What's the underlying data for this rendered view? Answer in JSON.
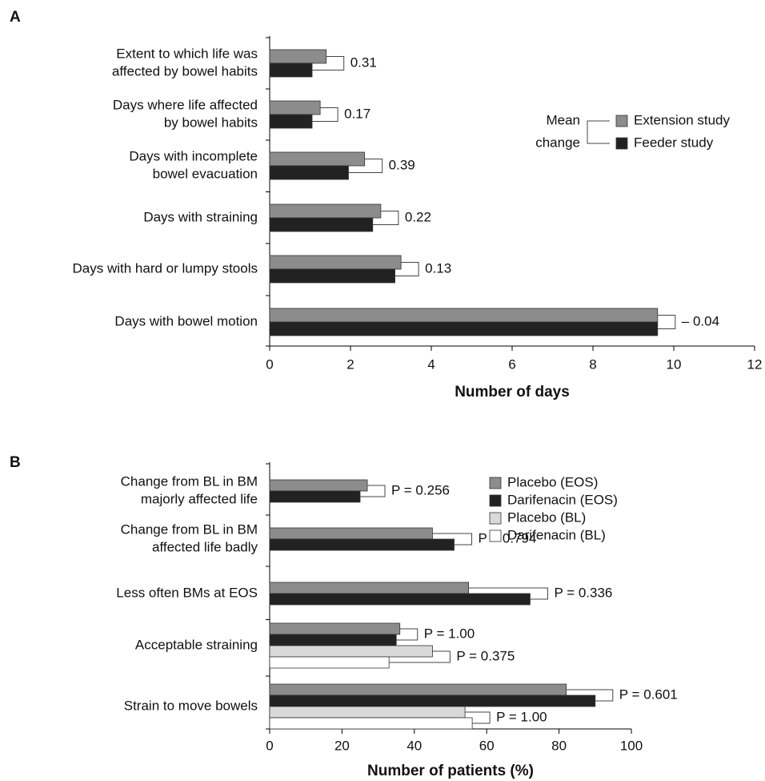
{
  "chart_data": [
    {
      "type": "bar",
      "orientation": "horizontal",
      "panel_label": "A",
      "categories": [
        [
          "Extent to which life was",
          "affected by bowel habits"
        ],
        [
          "Days where life affected",
          "by bowel habits"
        ],
        [
          "Days with incomplete",
          "bowel evacuation"
        ],
        [
          "Days with straining"
        ],
        [
          "Days with hard or lumpy stools"
        ],
        [
          "Days with bowel motion"
        ]
      ],
      "series": [
        {
          "name": "Extension study",
          "color": "#8c8c8c",
          "values": [
            1.4,
            1.25,
            2.35,
            2.75,
            3.25,
            9.6
          ]
        },
        {
          "name": "Feeder study",
          "color": "#222222",
          "values": [
            1.05,
            1.05,
            1.95,
            2.55,
            3.1,
            9.6
          ]
        }
      ],
      "annotations": [
        [
          "0.31"
        ],
        [
          "0.17"
        ],
        [
          "0.39"
        ],
        [
          "0.22"
        ],
        [
          "0.13"
        ],
        [
          "– 0.04"
        ]
      ],
      "legend_title": [
        "Mean",
        "change"
      ],
      "xlim": [
        0,
        12
      ],
      "xticks": [
        0,
        2,
        4,
        6,
        8,
        10,
        12
      ],
      "xlabel": "Number of days"
    },
    {
      "type": "bar",
      "orientation": "horizontal",
      "panel_label": "B",
      "categories": [
        [
          "Change from BL in BM",
          "majorly affected life"
        ],
        [
          "Change from BL in BM",
          "affected life badly"
        ],
        [
          "Less often BMs at EOS"
        ],
        [
          "Acceptable straining"
        ],
        [
          "Strain to move bowels"
        ]
      ],
      "series": [
        {
          "name": "Placebo (EOS)",
          "color": "#8c8c8c",
          "values": [
            27,
            45,
            55,
            36,
            82
          ]
        },
        {
          "name": "Darifenacin (EOS)",
          "color": "#222222",
          "values": [
            25,
            51,
            72,
            35,
            90
          ]
        },
        {
          "name": "Placebo (BL)",
          "color": "#d9d9d9",
          "values": [
            null,
            null,
            null,
            45,
            54
          ]
        },
        {
          "name": "Darifenacin (BL)",
          "color": "#ffffff",
          "values": [
            null,
            null,
            null,
            33,
            56
          ]
        }
      ],
      "annotations": [
        [
          "P = 0.256"
        ],
        [
          "P = 0.794"
        ],
        [
          "P = 0.336"
        ],
        [
          "P = 1.00",
          "P = 0.375"
        ],
        [
          "P = 0.601",
          "P = 1.00"
        ]
      ],
      "xlim": [
        0,
        100
      ],
      "xticks": [
        0,
        20,
        40,
        60,
        80,
        100
      ],
      "xlabel": "Number of patients (%)"
    }
  ]
}
